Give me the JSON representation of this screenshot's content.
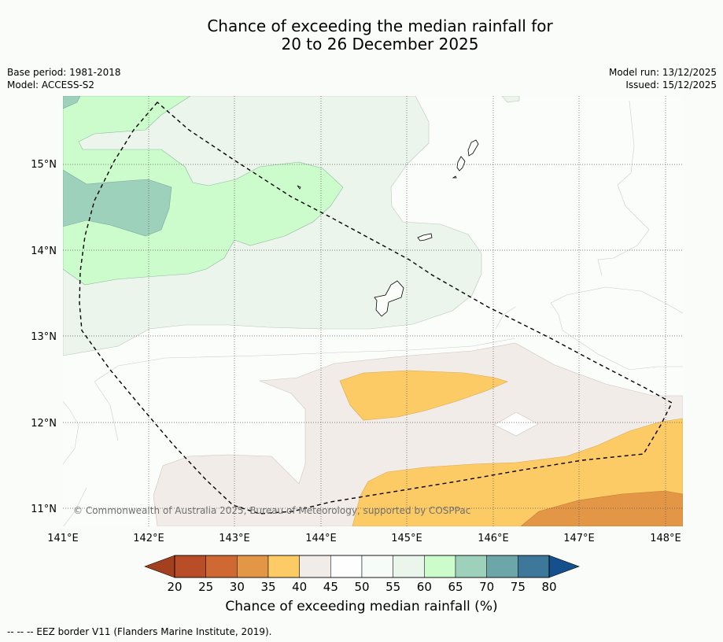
{
  "title": {
    "line1": "Chance of exceeding the median rainfall for",
    "line2": "20 to 26 December 2025"
  },
  "meta": {
    "base_period": "Base period: 1981-2018",
    "model": "Model: ACCESS-S2",
    "model_run": "Model run: 13/12/2025",
    "issued": "Issued: 15/12/2025"
  },
  "axes": {
    "lat_labels": [
      "15°N",
      "14°N",
      "13°N",
      "12°N",
      "11°N"
    ],
    "lon_labels": [
      "141°E",
      "142°E",
      "143°E",
      "144°E",
      "145°E",
      "146°E",
      "147°E",
      "148°E"
    ],
    "lat_range": [
      10.8,
      15.8
    ],
    "lon_range": [
      141.0,
      148.2
    ]
  },
  "copyright": "© Commonwealth of Australia 2025, Bureau of Meteorology, supported by COSPPac",
  "colorbar": {
    "title": "Chance of exceeding median rainfall (%)",
    "ticks": [
      "20",
      "25",
      "30",
      "35",
      "40",
      "45",
      "50",
      "55",
      "60",
      "65",
      "70",
      "75",
      "80"
    ],
    "colors": [
      "#a3401f",
      "#b84d28",
      "#d06833",
      "#e39645",
      "#fdcb66",
      "#f1ece7",
      "#fefefe",
      "#f8fcf8",
      "#ebf5eb",
      "#ccfccc",
      "#9ed1bc",
      "#6ca6a8",
      "#3d7799",
      "#15508c"
    ]
  },
  "footer": "--  --  -- EEZ border V11 (Flanders Marine Institute, 2019)."
}
